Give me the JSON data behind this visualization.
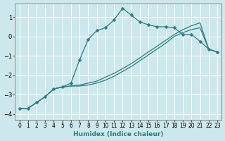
{
  "xlabel": "Humidex (Indice chaleur)",
  "bg_color": "#cce8ec",
  "grid_color": "#ffffff",
  "line_color": "#2d7d7d",
  "xlim": [
    -0.5,
    23.5
  ],
  "ylim": [
    -4.3,
    1.7
  ],
  "yticks": [
    -4,
    -3,
    -2,
    -1,
    0,
    1
  ],
  "xticks": [
    0,
    1,
    2,
    3,
    4,
    5,
    6,
    7,
    8,
    9,
    10,
    11,
    12,
    13,
    14,
    15,
    16,
    17,
    18,
    19,
    20,
    21,
    22,
    23
  ],
  "series1_x": [
    0,
    1,
    2,
    3,
    4,
    5,
    6,
    7,
    8,
    9,
    10,
    11,
    12,
    13,
    14,
    15,
    16,
    17,
    18,
    19,
    20,
    21,
    22,
    23
  ],
  "series1_y": [
    -3.7,
    -3.7,
    -3.4,
    -3.1,
    -2.7,
    -2.6,
    -2.4,
    -1.2,
    -0.15,
    0.3,
    0.45,
    0.85,
    1.45,
    1.1,
    0.75,
    0.6,
    0.5,
    0.5,
    0.45,
    0.1,
    0.1,
    -0.25,
    -0.65,
    -0.8
  ],
  "series2_x": [
    0,
    1,
    2,
    3,
    4,
    5,
    6,
    7,
    8,
    9,
    10,
    11,
    12,
    13,
    14,
    15,
    16,
    17,
    18,
    19,
    20,
    21,
    22,
    23
  ],
  "series2_y": [
    -3.7,
    -3.7,
    -3.4,
    -3.1,
    -2.7,
    -2.6,
    -2.55,
    -2.5,
    -2.4,
    -2.3,
    -2.1,
    -1.9,
    -1.65,
    -1.4,
    -1.1,
    -0.8,
    -0.5,
    -0.2,
    0.1,
    0.35,
    0.55,
    0.7,
    -0.65,
    -0.8
  ],
  "series3_x": [
    0,
    1,
    2,
    3,
    4,
    5,
    6,
    7,
    8,
    9,
    10,
    11,
    12,
    13,
    14,
    15,
    16,
    17,
    18,
    19,
    20,
    21,
    22,
    23
  ],
  "series3_y": [
    -3.7,
    -3.7,
    -3.4,
    -3.1,
    -2.7,
    -2.6,
    -2.55,
    -2.55,
    -2.5,
    -2.4,
    -2.25,
    -2.05,
    -1.8,
    -1.55,
    -1.25,
    -0.95,
    -0.65,
    -0.35,
    0.0,
    0.2,
    0.35,
    0.45,
    -0.65,
    -0.8
  ]
}
